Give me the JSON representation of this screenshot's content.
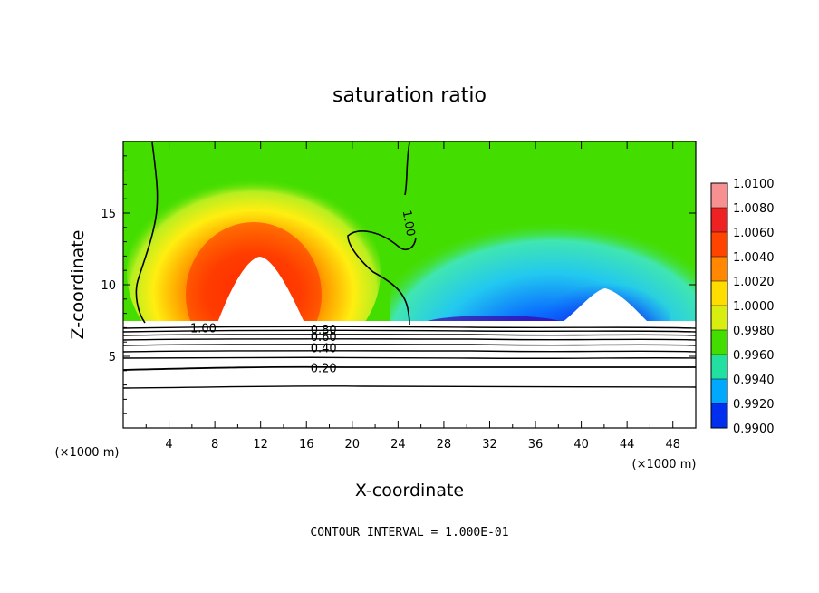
{
  "chart_data": {
    "type": "heatmap",
    "title": "saturation ratio",
    "xlabel": "X-coordinate",
    "ylabel": "Z-coordinate",
    "x_unit": "(×1000 m)",
    "xlim": [
      0,
      50
    ],
    "ylim": [
      0,
      20
    ],
    "xticks": [
      4,
      8,
      12,
      16,
      20,
      24,
      28,
      32,
      36,
      40,
      44,
      48
    ],
    "yticks": [
      5,
      10,
      15
    ],
    "footer": "CONTOUR INTERVAL = 1.000E-01",
    "colorbar": {
      "levels": [
        "1.0100",
        "1.0080",
        "1.0060",
        "1.0040",
        "1.0020",
        "1.0000",
        "0.9980",
        "0.9960",
        "0.9940",
        "0.9920",
        "0.9900"
      ],
      "colors": [
        "#f79090",
        "#ee2222",
        "#ff4400",
        "#ff8800",
        "#ffdd00",
        "#d8ee10",
        "#44dd00",
        "#22e0a0",
        "#00a8ff",
        "#0030ee",
        "#6600aa"
      ]
    },
    "contour_labels": [
      {
        "text": "1.00",
        "x": 7,
        "y": 7.0
      },
      {
        "text": "1.00",
        "x": 25,
        "y": 14.3
      },
      {
        "text": "0.80",
        "x": 17.5,
        "y": 6.9
      },
      {
        "text": "0.60",
        "x": 17.5,
        "y": 6.4
      },
      {
        "text": "0.40",
        "x": 17.5,
        "y": 5.6
      },
      {
        "text": "0.20",
        "x": 17.5,
        "y": 4.2
      }
    ]
  }
}
